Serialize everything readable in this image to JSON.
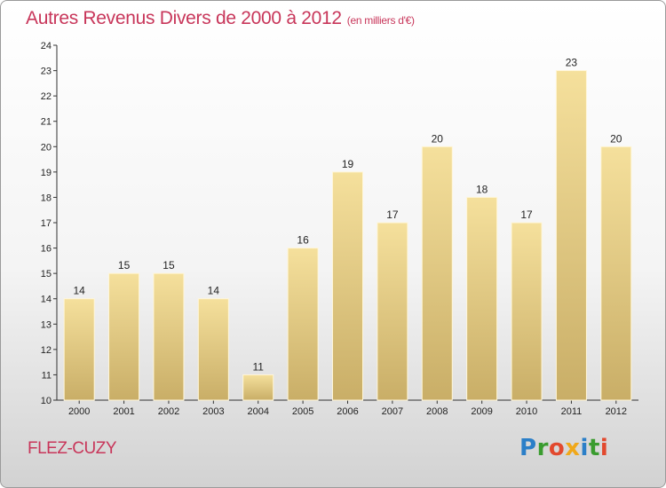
{
  "header": {
    "title": "Autres Revenus Divers de 2000 à 2012",
    "unit": "(en milliers d'€)"
  },
  "commune": "FLEZ-CUZY",
  "logo": {
    "letters": [
      {
        "ch": "P",
        "color": "#2b7fc8"
      },
      {
        "ch": "r",
        "color": "#3a9c2f"
      },
      {
        "ch": "o",
        "color": "#e2492e"
      },
      {
        "ch": "x",
        "color": "#f0a81a"
      },
      {
        "ch": "i",
        "color": "#2b7fc8"
      },
      {
        "ch": "t",
        "color": "#3a9c2f"
      },
      {
        "ch": "i",
        "color": "#e2492e"
      }
    ]
  },
  "chart_data": {
    "type": "bar",
    "title": "Autres Revenus Divers de 2000 à 2012",
    "subtitle": "(en milliers d'€)",
    "categories": [
      "2000",
      "2001",
      "2002",
      "2003",
      "2004",
      "2005",
      "2006",
      "2007",
      "2008",
      "2009",
      "2010",
      "2011",
      "2012"
    ],
    "values": [
      14,
      15,
      15,
      14,
      11,
      16,
      19,
      17,
      20,
      18,
      17,
      23,
      20
    ],
    "ylim": [
      10,
      24
    ],
    "yticks": [
      10,
      11,
      12,
      13,
      14,
      15,
      16,
      17,
      18,
      19,
      20,
      21,
      22,
      23,
      24
    ],
    "grid": false,
    "bar_color_top": "#f5e09c",
    "bar_color_bottom": "#c9ae67"
  }
}
